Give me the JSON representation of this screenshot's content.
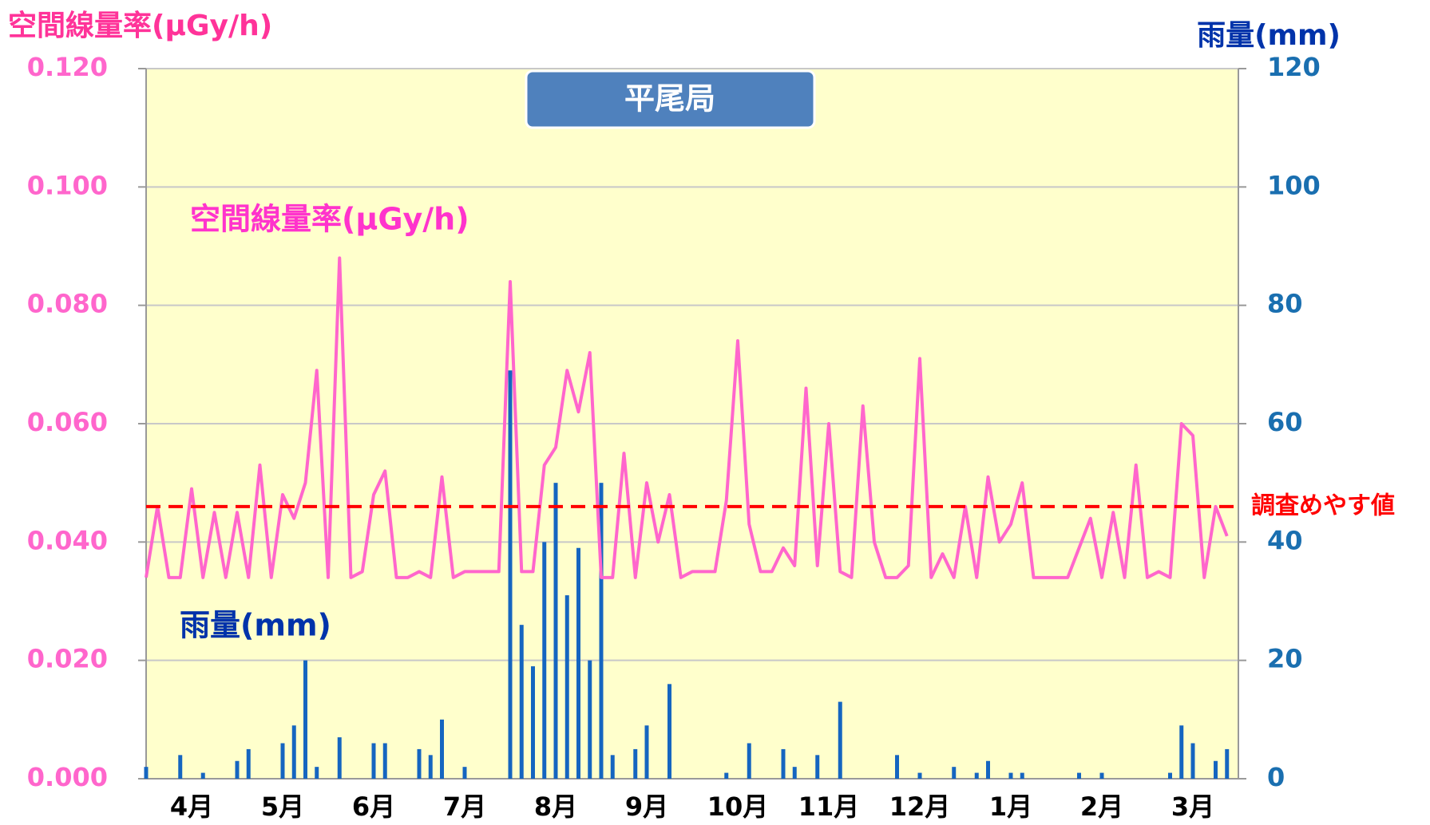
{
  "chart_data": {
    "type": "line",
    "title": "平尾局",
    "y_label": "空間線量率(μGy/h)",
    "y2_label": "雨量(mm)",
    "xlim": [
      0,
      12
    ],
    "xticks": [
      {
        "value": 0.5,
        "label": "4月"
      },
      {
        "value": 1.5,
        "label": "5月"
      },
      {
        "value": 2.5,
        "label": "6月"
      },
      {
        "value": 3.5,
        "label": "7月"
      },
      {
        "value": 4.5,
        "label": "8月"
      },
      {
        "value": 5.5,
        "label": "9月"
      },
      {
        "value": 6.5,
        "label": "10月"
      },
      {
        "value": 7.5,
        "label": "11月"
      },
      {
        "value": 8.5,
        "label": "12月"
      },
      {
        "value": 9.5,
        "label": "1月"
      },
      {
        "value": 10.5,
        "label": "2月"
      },
      {
        "value": 11.5,
        "label": "3月"
      }
    ],
    "ylim": [
      0,
      0.12
    ],
    "yticks": [
      {
        "value": 0,
        "label": "0.000"
      },
      {
        "value": 0.02,
        "label": "0.020"
      },
      {
        "value": 0.04,
        "label": "0.040"
      },
      {
        "value": 0.06,
        "label": "0.060"
      },
      {
        "value": 0.08,
        "label": "0.080"
      },
      {
        "value": 0.1,
        "label": "0.100"
      },
      {
        "value": 0.12,
        "label": "0.120"
      }
    ],
    "y2lim": [
      0,
      120
    ],
    "y2ticks": [
      0,
      20,
      40,
      60,
      80,
      100,
      120
    ],
    "grid": true,
    "threshold": {
      "value": 0.046,
      "label": "調査めやす値",
      "color": "#ff0000"
    },
    "x": [
      0,
      0.125,
      0.25,
      0.375,
      0.5,
      0.625,
      0.75,
      0.875,
      1,
      1.125,
      1.25,
      1.375,
      1.5,
      1.625,
      1.75,
      1.875,
      2,
      2.125,
      2.25,
      2.375,
      2.5,
      2.625,
      2.75,
      2.875,
      3,
      3.125,
      3.25,
      3.375,
      3.5,
      3.625,
      3.75,
      3.875,
      4,
      4.125,
      4.25,
      4.375,
      4.5,
      4.625,
      4.75,
      4.875,
      5,
      5.125,
      5.25,
      5.375,
      5.5,
      5.625,
      5.75,
      5.875,
      6,
      6.125,
      6.25,
      6.375,
      6.5,
      6.625,
      6.75,
      6.875,
      7,
      7.125,
      7.25,
      7.375,
      7.5,
      7.625,
      7.75,
      7.875,
      8,
      8.125,
      8.25,
      8.375,
      8.5,
      8.625,
      8.75,
      8.875,
      9,
      9.125,
      9.25,
      9.375,
      9.5,
      9.625,
      9.75,
      9.875,
      10,
      10.125,
      10.25,
      10.375,
      10.5,
      10.625,
      10.75,
      10.875,
      11,
      11.125,
      11.25,
      11.375,
      11.5,
      11.625,
      11.75,
      11.875
    ],
    "series": [
      {
        "name": "空間線量率(μGy/h)",
        "color": "#ff66cc",
        "values": [
          0.034,
          0.046,
          0.034,
          0.034,
          0.049,
          0.034,
          0.045,
          0.034,
          0.045,
          0.034,
          0.053,
          0.034,
          0.048,
          0.044,
          0.05,
          0.069,
          0.034,
          0.088,
          0.034,
          0.035,
          0.048,
          0.052,
          0.034,
          0.034,
          0.035,
          0.034,
          0.051,
          0.034,
          0.035,
          0.035,
          0.035,
          0.035,
          0.084,
          0.035,
          0.035,
          0.053,
          0.056,
          0.069,
          0.062,
          0.072,
          0.034,
          0.034,
          0.055,
          0.034,
          0.05,
          0.04,
          0.048,
          0.034,
          0.035,
          0.035,
          0.035,
          0.047,
          0.074,
          0.043,
          0.035,
          0.035,
          0.039,
          0.036,
          0.066,
          0.036,
          0.06,
          0.035,
          0.034,
          0.063,
          0.04,
          0.034,
          0.034,
          0.036,
          0.071,
          0.034,
          0.038,
          0.034,
          0.046,
          0.034,
          0.051,
          0.04,
          0.043,
          0.05,
          0.034,
          0.034,
          0.034,
          0.034,
          0.039,
          0.044,
          0.034,
          0.045,
          0.034,
          0.053,
          0.034,
          0.035,
          0.034,
          0.06,
          0.058,
          0.034,
          0.046,
          0.041
        ]
      },
      {
        "name": "雨量(mm)",
        "color": "#1565c0",
        "axis": "y2",
        "type": "bar",
        "values": [
          2,
          0,
          0,
          4,
          0,
          1,
          0,
          0,
          3,
          5,
          0,
          0,
          6,
          9,
          20,
          2,
          0,
          7,
          0,
          0,
          6,
          6,
          0,
          0,
          5,
          4,
          10,
          0,
          2,
          0,
          0,
          0,
          69,
          26,
          19,
          40,
          50,
          31,
          39,
          20,
          50,
          4,
          0,
          5,
          9,
          0,
          16,
          0,
          0,
          0,
          0,
          1,
          0,
          6,
          0,
          0,
          5,
          2,
          0,
          4,
          0,
          13,
          0,
          0,
          0,
          0,
          4,
          0,
          1,
          0,
          0,
          2,
          0,
          1,
          3,
          0,
          1,
          1,
          0,
          0,
          0,
          0,
          1,
          0,
          1,
          0,
          0,
          0,
          0,
          0,
          1,
          9,
          6,
          0,
          3,
          5
        ]
      }
    ]
  }
}
